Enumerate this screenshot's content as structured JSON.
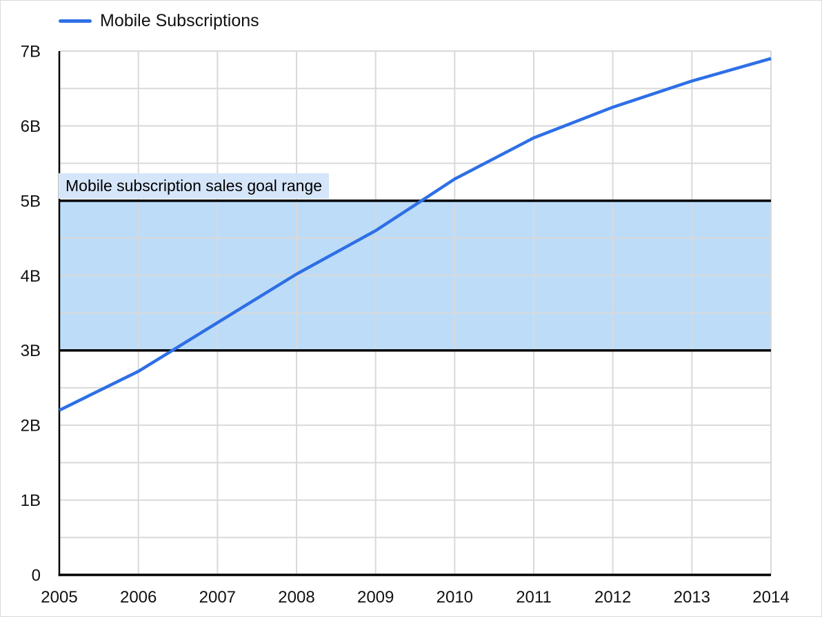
{
  "chart_data": {
    "type": "line",
    "title": "",
    "xlabel": "",
    "ylabel": "",
    "x": [
      2005,
      2006,
      2007,
      2008,
      2009,
      2010,
      2011,
      2012,
      2013,
      2014
    ],
    "x_tick_labels": [
      "2005",
      "2006",
      "2007",
      "2008",
      "2009",
      "2010",
      "2011",
      "2012",
      "2013",
      "2014"
    ],
    "series": [
      {
        "name": "Mobile Subscriptions",
        "values": [
          2.2,
          2.72,
          3.37,
          4.02,
          4.6,
          5.29,
          5.84,
          6.25,
          6.6,
          6.9
        ],
        "color": "#2e6fe6",
        "unit": "billions"
      }
    ],
    "ylim": [
      0,
      7
    ],
    "y_tick_labels": [
      "0",
      "1B",
      "2B",
      "3B",
      "4B",
      "5B",
      "6B",
      "7B"
    ],
    "y_major_step": 1,
    "y_minor_step": 0.5,
    "grid": true,
    "legend_position": "top-left",
    "annotation_band": {
      "from": 3,
      "to": 5,
      "label": "Mobile subscription sales goal range",
      "fill": "#bddcf8",
      "label_bg": "#d6e6fa",
      "border_color": "#000000"
    },
    "colors": {
      "grid": "#d9d9d9",
      "axis": "#000000",
      "text": "#111111",
      "background": "#ffffff",
      "canvas_border": "#d9d9d9"
    }
  },
  "legend": {
    "label": "Mobile Subscriptions"
  }
}
